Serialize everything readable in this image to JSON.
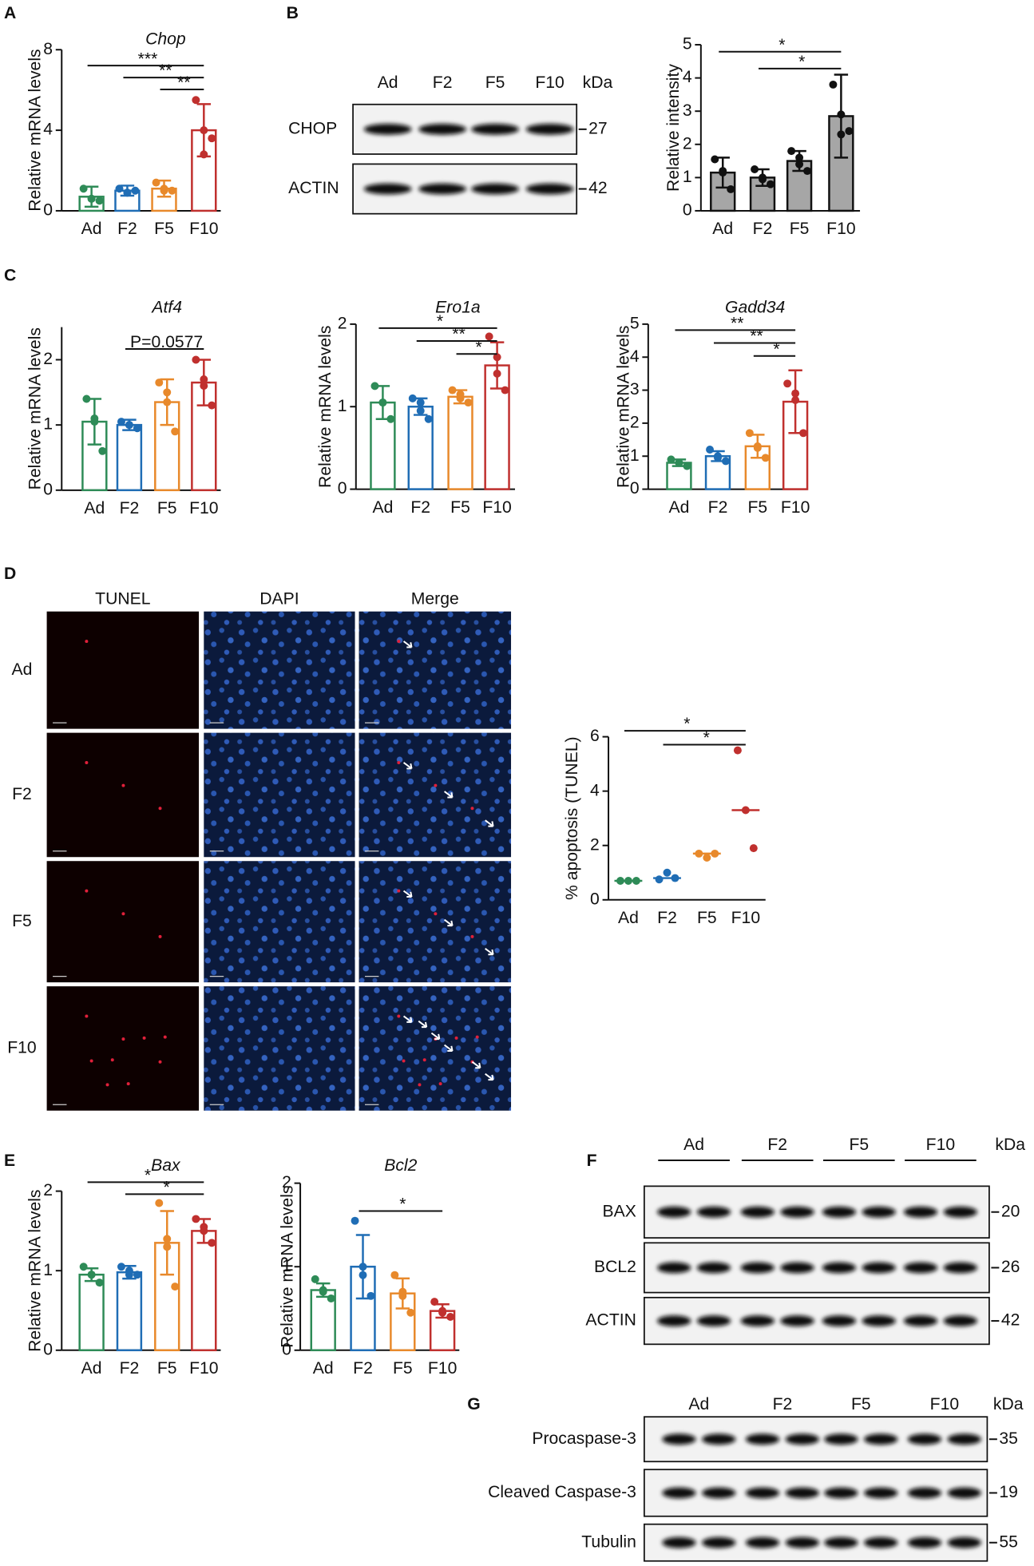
{
  "panel_labels": [
    "A",
    "B",
    "C",
    "D",
    "E",
    "F",
    "G"
  ],
  "chart_data": [
    {
      "type": "bar",
      "title": "Chop",
      "ylabel": "Relative mRNA levels",
      "categories": [
        "Ad",
        "F2",
        "F5",
        "F10"
      ],
      "values": [
        0.7,
        1.0,
        1.1,
        4.0
      ],
      "errors": [
        0.5,
        0.25,
        0.4,
        1.3
      ],
      "points": [
        [
          1.1,
          0.6,
          0.5,
          0.6
        ],
        [
          1.1,
          0.9,
          1.0,
          0.9
        ],
        [
          1.4,
          1.0,
          1.0,
          1.1
        ],
        [
          5.5,
          4.0,
          3.6,
          2.8
        ]
      ],
      "colors": [
        "#2e8b57",
        "#1f6db5",
        "#e8892b",
        "#c0302e"
      ],
      "bar_fill": "none",
      "ylim": [
        0,
        8
      ],
      "yticks": [
        0,
        4,
        8
      ],
      "significance": [
        {
          "label": "***",
          "from": 0,
          "to": 3
        },
        {
          "label": "**",
          "from": 1,
          "to": 3
        },
        {
          "label": "**",
          "from": 2,
          "to": 3
        }
      ]
    },
    {
      "type": "bar",
      "ylabel": "Relative intensity",
      "categories": [
        "Ad",
        "F2",
        "F5",
        "F10"
      ],
      "values": [
        1.15,
        1.0,
        1.5,
        2.85
      ],
      "errors": [
        0.45,
        0.25,
        0.3,
        1.25
      ],
      "points": [
        [
          1.55,
          1.2,
          0.65,
          1.15
        ],
        [
          1.25,
          0.95,
          0.8,
          1.0
        ],
        [
          1.8,
          1.4,
          1.2,
          1.6
        ],
        [
          3.8,
          2.9,
          2.4,
          2.3
        ]
      ],
      "colors": [
        "#111111",
        "#111111",
        "#111111",
        "#111111"
      ],
      "bar_fill": "#a6a6a6",
      "ylim": [
        0,
        5
      ],
      "yticks": [
        0,
        1,
        2,
        3,
        4,
        5
      ],
      "significance": [
        {
          "label": "*",
          "from": 0,
          "to": 3
        },
        {
          "label": "*",
          "from": 1,
          "to": 3
        }
      ]
    },
    {
      "type": "bar",
      "title": "Atf4",
      "ylabel": "Relative mRNA levels",
      "categories": [
        "Ad",
        "F2",
        "F5",
        "F10"
      ],
      "values": [
        1.05,
        1.0,
        1.35,
        1.65
      ],
      "errors": [
        0.35,
        0.08,
        0.35,
        0.35
      ],
      "points": [
        [
          1.4,
          1.05,
          0.6,
          1.1
        ],
        [
          1.05,
          1.0,
          0.95,
          1.0
        ],
        [
          1.65,
          1.5,
          0.9,
          1.35
        ],
        [
          2.0,
          1.7,
          1.3,
          1.6
        ]
      ],
      "colors": [
        "#2e8b57",
        "#1f6db5",
        "#e8892b",
        "#c0302e"
      ],
      "bar_fill": "none",
      "ylim": [
        0,
        2.5
      ],
      "yticks": [
        0,
        1,
        2
      ],
      "significance": [
        {
          "label": "P=0.0577",
          "from": 1,
          "to": 3
        }
      ]
    },
    {
      "type": "bar",
      "title": "Ero1a",
      "ylabel": "Relative mRNA levels",
      "categories": [
        "Ad",
        "F2",
        "F5",
        "F10"
      ],
      "values": [
        1.05,
        1.0,
        1.12,
        1.5
      ],
      "errors": [
        0.2,
        0.1,
        0.08,
        0.28
      ],
      "points": [
        [
          1.25,
          1.05,
          0.85,
          1.05
        ],
        [
          1.1,
          0.95,
          0.85,
          1.05
        ],
        [
          1.2,
          1.1,
          1.05,
          1.15
        ],
        [
          1.85,
          1.6,
          1.2,
          1.4
        ]
      ],
      "colors": [
        "#2e8b57",
        "#1f6db5",
        "#e8892b",
        "#c0302e"
      ],
      "bar_fill": "none",
      "ylim": [
        0,
        2
      ],
      "yticks": [
        0,
        1,
        2
      ],
      "significance": [
        {
          "label": "*",
          "from": 0,
          "to": 3
        },
        {
          "label": "**",
          "from": 1,
          "to": 3
        },
        {
          "label": "*",
          "from": 2,
          "to": 3
        }
      ]
    },
    {
      "type": "bar",
      "title": "Gadd34",
      "ylabel": "Relative mRNA levels",
      "categories": [
        "Ad",
        "F2",
        "F5",
        "F10"
      ],
      "values": [
        0.8,
        1.0,
        1.3,
        2.65
      ],
      "errors": [
        0.1,
        0.15,
        0.35,
        0.95
      ],
      "points": [
        [
          0.9,
          0.8,
          0.7,
          0.8
        ],
        [
          1.2,
          0.95,
          0.85,
          1.0
        ],
        [
          1.7,
          1.3,
          0.95,
          1.25
        ],
        [
          3.2,
          2.7,
          1.7,
          2.9
        ]
      ],
      "colors": [
        "#2e8b57",
        "#1f6db5",
        "#e8892b",
        "#c0302e"
      ],
      "bar_fill": "none",
      "ylim": [
        0,
        5
      ],
      "yticks": [
        0,
        1,
        2,
        3,
        4,
        5
      ],
      "significance": [
        {
          "label": "**",
          "from": 0,
          "to": 3
        },
        {
          "label": "**",
          "from": 1,
          "to": 3
        },
        {
          "label": "*",
          "from": 2,
          "to": 3
        }
      ]
    },
    {
      "type": "dot",
      "ylabel": "% apoptosis (TUNEL)",
      "categories": [
        "Ad",
        "F2",
        "F5",
        "F10"
      ],
      "values": [
        0.7,
        0.8,
        1.7,
        3.3
      ],
      "points": [
        [
          0.7,
          0.7,
          0.7
        ],
        [
          0.75,
          1.0,
          0.8
        ],
        [
          1.7,
          1.55,
          1.7
        ],
        [
          5.5,
          3.3,
          1.9
        ]
      ],
      "colors": [
        "#2e8b57",
        "#1f6db5",
        "#e8892b",
        "#c0302e"
      ],
      "ylim": [
        0,
        6
      ],
      "yticks": [
        0,
        2,
        4,
        6
      ],
      "significance": [
        {
          "label": "*",
          "from": 0,
          "to": 3
        },
        {
          "label": "*",
          "from": 1,
          "to": 3
        }
      ]
    },
    {
      "type": "bar",
      "title": "Bax",
      "ylabel": "Relative mRNA levels",
      "categories": [
        "Ad",
        "F2",
        "F5",
        "F10"
      ],
      "values": [
        0.95,
        0.98,
        1.35,
        1.5
      ],
      "errors": [
        0.08,
        0.08,
        0.4,
        0.15
      ],
      "points": [
        [
          1.05,
          0.95,
          0.85,
          0.95
        ],
        [
          1.05,
          0.95,
          0.95,
          1.0
        ],
        [
          1.85,
          1.4,
          0.8,
          1.3
        ],
        [
          1.65,
          1.5,
          1.35,
          1.55
        ]
      ],
      "colors": [
        "#2e8b57",
        "#1f6db5",
        "#e8892b",
        "#c0302e"
      ],
      "bar_fill": "none",
      "ylim": [
        0,
        2
      ],
      "yticks": [
        0,
        1,
        2
      ],
      "significance": [
        {
          "label": "*",
          "from": 0,
          "to": 3
        },
        {
          "label": "*",
          "from": 1,
          "to": 3
        }
      ]
    },
    {
      "type": "bar",
      "title": "Bcl2",
      "ylabel": "Relative mRNA levels",
      "categories": [
        "Ad",
        "F2",
        "F5",
        "F10"
      ],
      "values": [
        0.72,
        1.0,
        0.68,
        0.47
      ],
      "errors": [
        0.08,
        0.38,
        0.18,
        0.08
      ],
      "points": [
        [
          0.85,
          0.72,
          0.62,
          0.7
        ],
        [
          1.55,
          0.9,
          0.65,
          1.0
        ],
        [
          0.9,
          0.7,
          0.45,
          0.65
        ],
        [
          0.58,
          0.45,
          0.4,
          0.47
        ]
      ],
      "colors": [
        "#2e8b57",
        "#1f6db5",
        "#e8892b",
        "#c0302e"
      ],
      "bar_fill": "none",
      "ylim": [
        0,
        2
      ],
      "yticks": [
        0,
        1,
        2
      ],
      "significance": [
        {
          "label": "*",
          "from": 1,
          "to": 3
        }
      ]
    }
  ],
  "blots": [
    {
      "lanes": [
        "Ad",
        "F2",
        "F5",
        "F10"
      ],
      "unit": "kDa",
      "rows": [
        {
          "label": "CHOP",
          "kda": 27
        },
        {
          "label": "ACTIN",
          "kda": 42
        }
      ]
    },
    {
      "lanes": [
        "Ad",
        "F2",
        "F5",
        "F10"
      ],
      "unit": "kDa",
      "rows": [
        {
          "label": "BAX",
          "kda": 20
        },
        {
          "label": "BCL2",
          "kda": 26
        },
        {
          "label": "ACTIN",
          "kda": 42
        }
      ]
    },
    {
      "lanes": [
        "Ad",
        "F2",
        "F5",
        "F10"
      ],
      "unit": "kDa",
      "rows": [
        {
          "label": "Procaspase-3",
          "kda": 35
        },
        {
          "label": "Cleaved Caspase-3",
          "kda": 19
        },
        {
          "label": "Tubulin",
          "kda": 55
        }
      ]
    }
  ],
  "micrographs": {
    "columns": [
      "TUNEL",
      "DAPI",
      "Merge"
    ],
    "rows": [
      "Ad",
      "F2",
      "F5",
      "F10"
    ]
  }
}
